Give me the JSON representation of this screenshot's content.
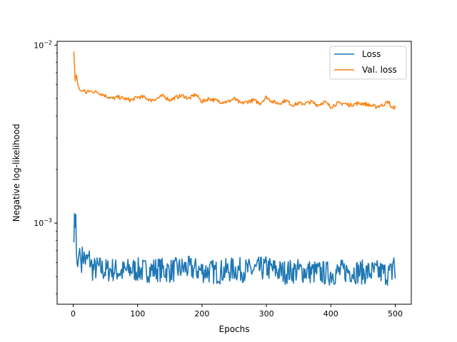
{
  "chart_data": {
    "type": "line",
    "title": "",
    "xlabel": "Epochs",
    "ylabel": "Negative log-likelihood",
    "xlim": [
      -25,
      525
    ],
    "ylim": [
      0.00035,
      0.0105
    ],
    "yscale": "log",
    "grid": false,
    "legend_position": "top-right",
    "x_ticks": [
      0,
      100,
      200,
      300,
      400,
      500
    ],
    "x_tick_labels": [
      "0",
      "100",
      "200",
      "300",
      "400",
      "500"
    ],
    "y_ticks": [
      {
        "value": 0.01,
        "base": "10",
        "exp": "−2"
      },
      {
        "value": 0.001,
        "base": "10",
        "exp": "−3"
      }
    ],
    "series": [
      {
        "name": "Loss",
        "color": "#1f77b4",
        "x": [
          1,
          2,
          3,
          4,
          5,
          6,
          7,
          8,
          10,
          12,
          15,
          20,
          25,
          30,
          40,
          50,
          60,
          75,
          90,
          110,
          130,
          150,
          175,
          200,
          225,
          250,
          275,
          300,
          325,
          350,
          375,
          400,
          425,
          450,
          475,
          490,
          495,
          498,
          500
        ],
        "y": [
          0.00078,
          0.00113,
          0.00095,
          0.00112,
          0.00068,
          0.00059,
          0.00057,
          0.00062,
          0.00072,
          0.0006,
          0.00066,
          0.00061,
          0.00063,
          0.00055,
          0.00056,
          0.00054,
          0.00055,
          0.00053,
          0.00055,
          0.00054,
          0.00055,
          0.00054,
          0.00056,
          0.00054,
          0.00053,
          0.00055,
          0.00054,
          0.00056,
          0.00053,
          0.00054,
          0.00053,
          0.00052,
          0.00054,
          0.00053,
          0.00053,
          0.00052,
          0.00053,
          0.00066,
          0.00045
        ]
      },
      {
        "name": "Val. loss",
        "color": "#ff7f0e",
        "x": [
          1,
          3,
          5,
          7,
          10,
          13,
          16,
          20,
          25,
          30,
          40,
          50,
          60,
          70,
          80,
          90,
          100,
          110,
          120,
          130,
          140,
          150,
          160,
          170,
          180,
          190,
          200,
          210,
          220,
          230,
          240,
          250,
          260,
          270,
          280,
          290,
          300,
          310,
          320,
          330,
          340,
          350,
          360,
          370,
          380,
          390,
          400,
          410,
          420,
          430,
          440,
          450,
          460,
          470,
          480,
          490,
          495,
          500
        ],
        "y": [
          0.0092,
          0.0063,
          0.0068,
          0.006,
          0.0056,
          0.0055,
          0.0056,
          0.0054,
          0.0055,
          0.0055,
          0.0054,
          0.0052,
          0.005,
          0.0051,
          0.005,
          0.0049,
          0.0051,
          0.0051,
          0.0049,
          0.005,
          0.0052,
          0.0049,
          0.0051,
          0.0052,
          0.005,
          0.0053,
          0.0048,
          0.005,
          0.0049,
          0.0048,
          0.0048,
          0.005,
          0.0047,
          0.0048,
          0.0049,
          0.0047,
          0.0051,
          0.0048,
          0.0047,
          0.0049,
          0.0046,
          0.0047,
          0.0047,
          0.0048,
          0.0046,
          0.0048,
          0.0045,
          0.0047,
          0.0047,
          0.0046,
          0.0047,
          0.0047,
          0.0046,
          0.0045,
          0.0046,
          0.0048,
          0.0044,
          0.0045
        ]
      }
    ]
  }
}
